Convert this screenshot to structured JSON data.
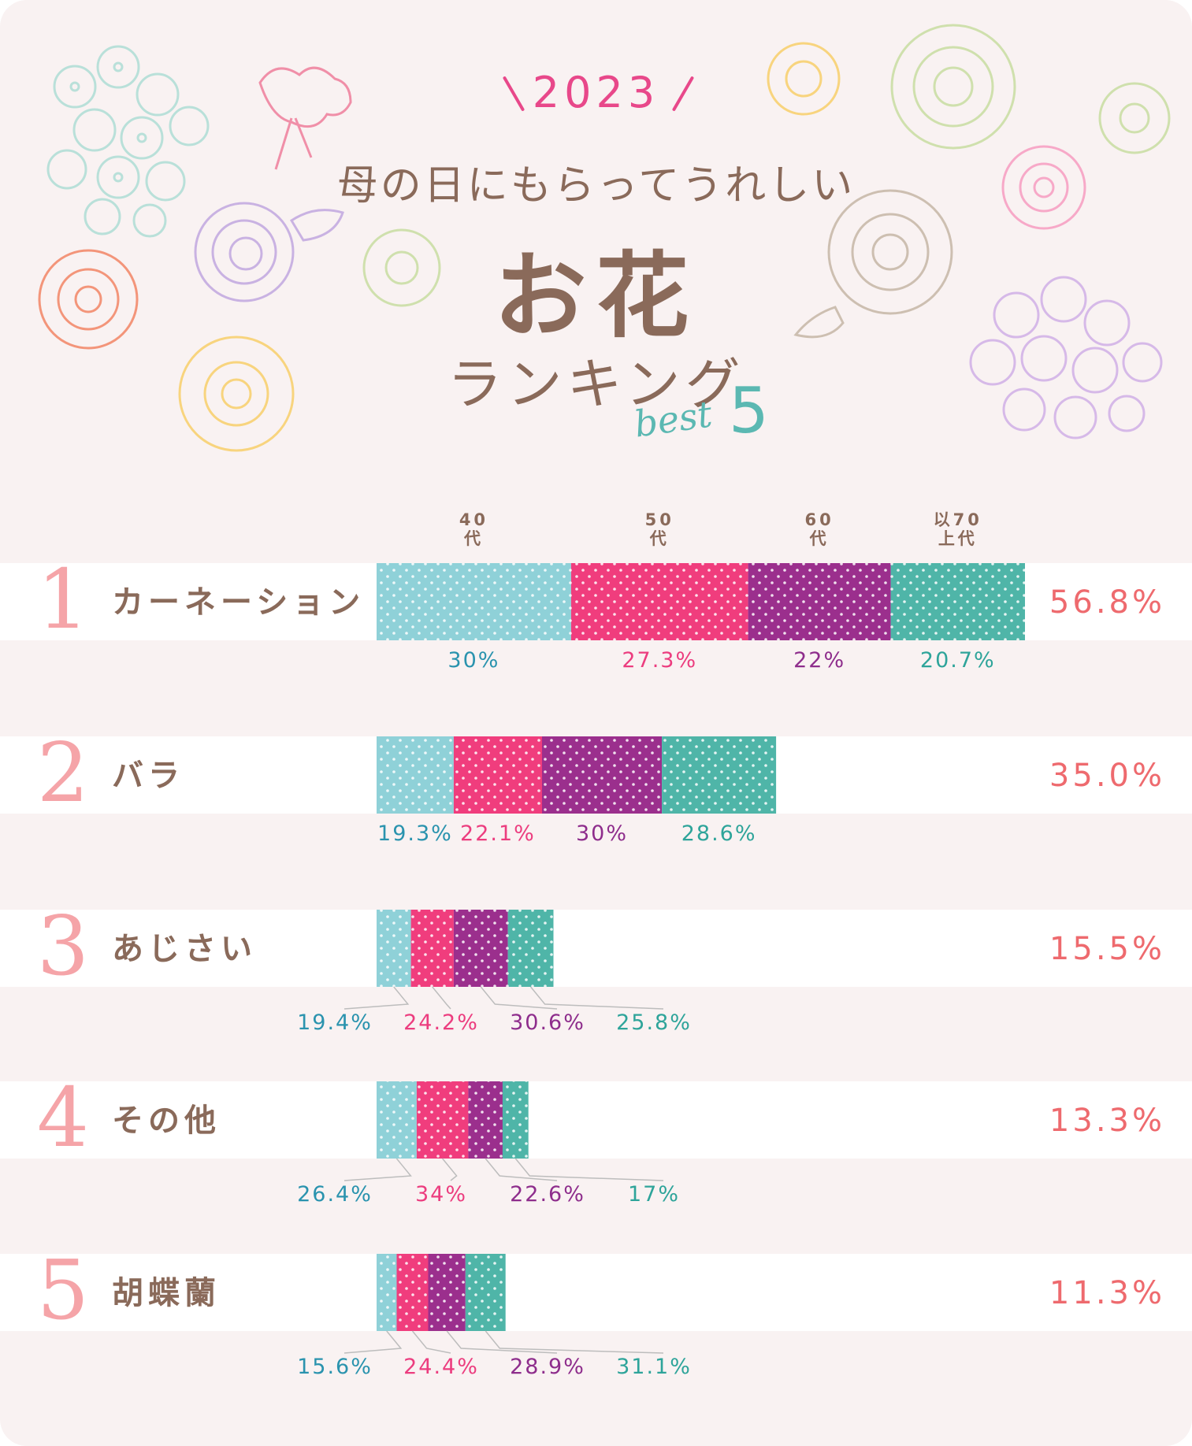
{
  "header": {
    "year": "2023",
    "subtitle": "母の日にもらってうれしい",
    "title": "お花",
    "ranking": "ランキング",
    "best_word": "best",
    "best_num": "5"
  },
  "colors": {
    "age_40": "#8fd1d8",
    "age_50": "#f03d7d",
    "age_60": "#9b2f8d",
    "age_70": "#4fb5a8",
    "label_40": "#2a93ae",
    "label_50": "#ec3d7f",
    "label_60": "#8e2d8c",
    "label_70": "#2ea49a",
    "rank": "#f5a4a8",
    "total": "#ee6a6e",
    "text": "#8a6a5a"
  },
  "chart_data": {
    "type": "bar",
    "stacked": true,
    "orientation": "horizontal",
    "age_groups": [
      "40代",
      "50代",
      "60代",
      "70代以上"
    ],
    "age_heads": [
      {
        "line1": "40",
        "line2": "代"
      },
      {
        "line1": "50",
        "line2": "代"
      },
      {
        "line1": "60",
        "line2": "代"
      },
      {
        "line1": "以70",
        "line2": "上代"
      }
    ],
    "categories": [
      "カーネーション",
      "バラ",
      "あじさい",
      "その他",
      "胡蝶蘭"
    ],
    "ranks": [
      "1",
      "2",
      "3",
      "4",
      "5"
    ],
    "totals": [
      56.8,
      35.0,
      15.5,
      13.3,
      11.3
    ],
    "total_labels": [
      "56.8%",
      "35.0%",
      "15.5%",
      "13.3%",
      "11.3%"
    ],
    "breakdown": [
      [
        30,
        27.3,
        22,
        20.7
      ],
      [
        19.3,
        22.1,
        30,
        28.6
      ],
      [
        19.4,
        24.2,
        30.6,
        25.8
      ],
      [
        26.4,
        34,
        22.6,
        17
      ],
      [
        15.6,
        24.4,
        28.9,
        31.1
      ]
    ],
    "breakdown_labels": [
      [
        "30%",
        "27.3%",
        "22%",
        "20.7%"
      ],
      [
        "19.3%",
        "22.1%",
        "30%",
        "28.6%"
      ],
      [
        "19.4%",
        "24.2%",
        "30.6%",
        "25.8%"
      ],
      [
        "26.4%",
        "34%",
        "22.6%",
        "17%"
      ],
      [
        "15.6%",
        "24.4%",
        "28.9%",
        "31.1%"
      ]
    ],
    "xlim": [
      0,
      56.8
    ]
  }
}
